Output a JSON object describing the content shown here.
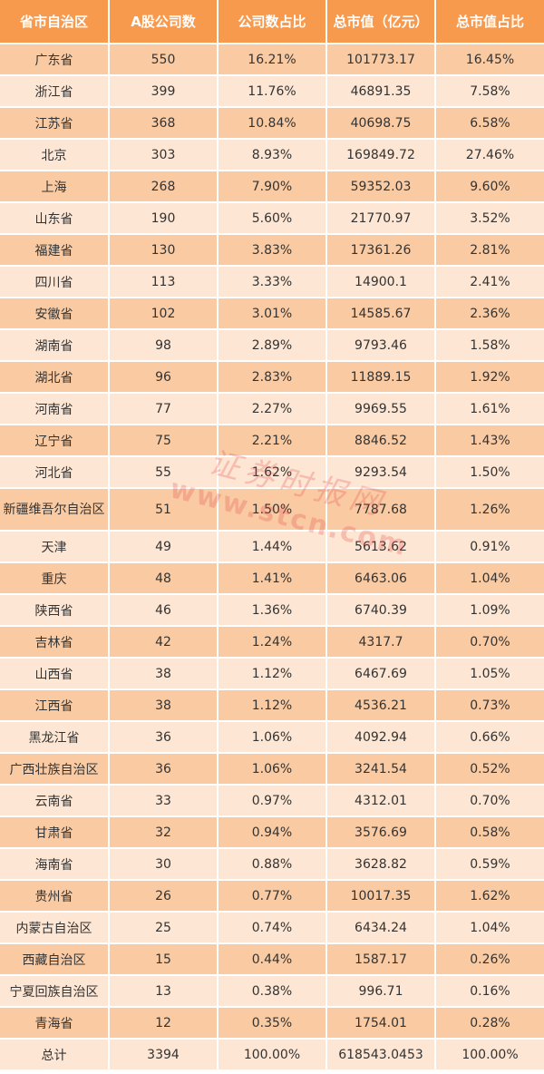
{
  "table": {
    "headers": [
      "省市自治区",
      "A股公司数",
      "公司数占比",
      "总市值（亿元）",
      "总市值占比"
    ],
    "rows": [
      [
        "广东省",
        "550",
        "16.21%",
        "101773.17",
        "16.45%"
      ],
      [
        "浙江省",
        "399",
        "11.76%",
        "46891.35",
        "7.58%"
      ],
      [
        "江苏省",
        "368",
        "10.84%",
        "40698.75",
        "6.58%"
      ],
      [
        "北京",
        "303",
        "8.93%",
        "169849.72",
        "27.46%"
      ],
      [
        "上海",
        "268",
        "7.90%",
        "59352.03",
        "9.60%"
      ],
      [
        "山东省",
        "190",
        "5.60%",
        "21770.97",
        "3.52%"
      ],
      [
        "福建省",
        "130",
        "3.83%",
        "17361.26",
        "2.81%"
      ],
      [
        "四川省",
        "113",
        "3.33%",
        "14900.1",
        "2.41%"
      ],
      [
        "安徽省",
        "102",
        "3.01%",
        "14585.67",
        "2.36%"
      ],
      [
        "湖南省",
        "98",
        "2.89%",
        "9793.46",
        "1.58%"
      ],
      [
        "湖北省",
        "96",
        "2.83%",
        "11889.15",
        "1.92%"
      ],
      [
        "河南省",
        "77",
        "2.27%",
        "9969.55",
        "1.61%"
      ],
      [
        "辽宁省",
        "75",
        "2.21%",
        "8846.52",
        "1.43%"
      ],
      [
        "河北省",
        "55",
        "1.62%",
        "9293.54",
        "1.50%"
      ],
      [
        "新疆维吾尔自治区",
        "51",
        "1.50%",
        "7787.68",
        "1.26%"
      ],
      [
        "天津",
        "49",
        "1.44%",
        "5613.62",
        "0.91%"
      ],
      [
        "重庆",
        "48",
        "1.41%",
        "6463.06",
        "1.04%"
      ],
      [
        "陕西省",
        "46",
        "1.36%",
        "6740.39",
        "1.09%"
      ],
      [
        "吉林省",
        "42",
        "1.24%",
        "4317.7",
        "0.70%"
      ],
      [
        "山西省",
        "38",
        "1.12%",
        "6467.69",
        "1.05%"
      ],
      [
        "江西省",
        "38",
        "1.12%",
        "4536.21",
        "0.73%"
      ],
      [
        "黑龙江省",
        "36",
        "1.06%",
        "4092.94",
        "0.66%"
      ],
      [
        "广西壮族自治区",
        "36",
        "1.06%",
        "3241.54",
        "0.52%"
      ],
      [
        "云南省",
        "33",
        "0.97%",
        "4312.01",
        "0.70%"
      ],
      [
        "甘肃省",
        "32",
        "0.94%",
        "3576.69",
        "0.58%"
      ],
      [
        "海南省",
        "30",
        "0.88%",
        "3628.82",
        "0.59%"
      ],
      [
        "贵州省",
        "26",
        "0.77%",
        "10017.35",
        "1.62%"
      ],
      [
        "内蒙古自治区",
        "25",
        "0.74%",
        "6434.24",
        "1.04%"
      ],
      [
        "西藏自治区",
        "15",
        "0.44%",
        "1587.17",
        "0.26%"
      ],
      [
        "宁夏回族自治区",
        "13",
        "0.38%",
        "996.71",
        "0.16%"
      ],
      [
        "青海省",
        "12",
        "0.35%",
        "1754.01",
        "0.28%"
      ],
      [
        "总计",
        "3394",
        "100.00%",
        "618543.0453",
        "100.00%"
      ]
    ]
  },
  "colors": {
    "header_bg": "#F79A4E",
    "row_dark": "#FACBA3",
    "row_light": "#FDE6D3"
  },
  "watermark": {
    "name": "证券时报网",
    "url": "www.stcn.com"
  }
}
